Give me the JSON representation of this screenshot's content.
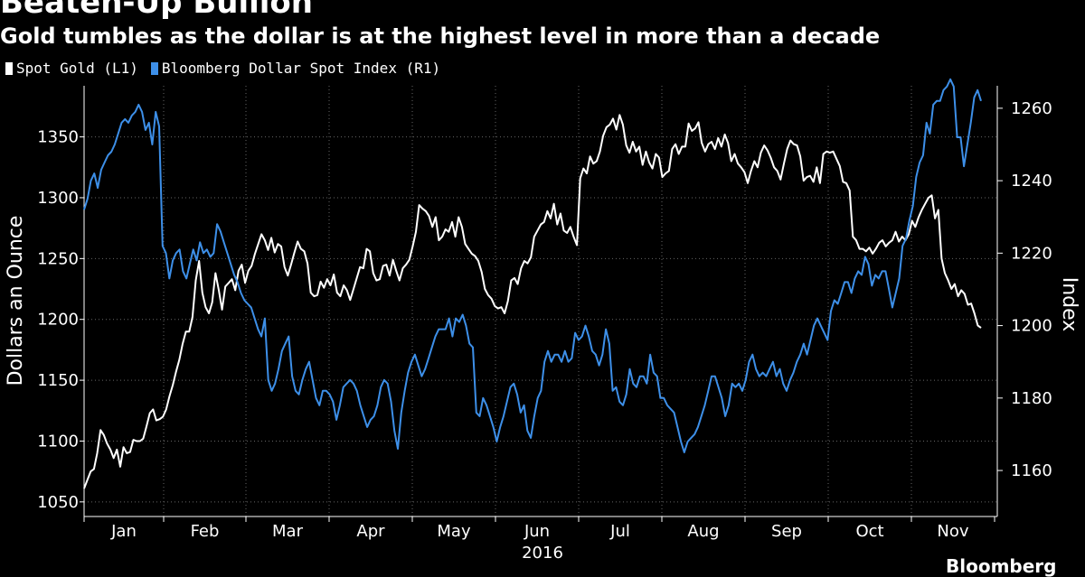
{
  "title": "Beaten-Up Bullion",
  "subtitle": "Gold tumbles as the dollar is at the highest level in more than a decade",
  "colors": {
    "background": "#000000",
    "gold": "#ffffff",
    "dollar": "#3d8fe8",
    "grid": "#666666"
  },
  "logo_text": "Bloomberg",
  "chart_data": {
    "type": "line",
    "x_axis": {
      "tick_labels": [
        "Jan",
        "Feb",
        "Mar",
        "Apr",
        "May",
        "Jun",
        "Jul",
        "Aug",
        "Sep",
        "Oct",
        "Nov"
      ],
      "year_label": "2016"
    },
    "y_left": {
      "label": "Dollars an Ounce",
      "ticks": [
        1050,
        1100,
        1150,
        1200,
        1250,
        1300,
        1350
      ],
      "range": [
        1038,
        1392
      ]
    },
    "y_right": {
      "label": "Index",
      "ticks": [
        1160,
        1180,
        1200,
        1220,
        1240,
        1260
      ],
      "range": [
        1147.3,
        1266.2
      ]
    },
    "grid": true,
    "legend": "top-left",
    "series": [
      {
        "name": "Spot Gold (L1)",
        "axis": "left",
        "values": [
          1061,
          1068,
          1075,
          1077,
          1090,
          1109,
          1105,
          1098,
          1093,
          1086,
          1093,
          1079,
          1095,
          1090,
          1091,
          1101,
          1100,
          1100,
          1102,
          1112,
          1123,
          1126,
          1117,
          1118,
          1120,
          1126,
          1137,
          1146,
          1157,
          1167,
          1180,
          1190,
          1190,
          1202,
          1232,
          1248,
          1222,
          1210,
          1205,
          1214,
          1238,
          1224,
          1208,
          1227,
          1230,
          1233,
          1224,
          1240,
          1245,
          1230,
          1240,
          1244,
          1254,
          1262,
          1270,
          1265,
          1257,
          1267,
          1255,
          1262,
          1260,
          1243,
          1236,
          1245,
          1255,
          1264,
          1258,
          1256,
          1246,
          1222,
          1219,
          1220,
          1231,
          1226,
          1233,
          1228,
          1237,
          1222,
          1219,
          1228,
          1224,
          1216,
          1225,
          1234,
          1243,
          1242,
          1258,
          1256,
          1238,
          1232,
          1233,
          1244,
          1245,
          1236,
          1249,
          1240,
          1232,
          1242,
          1245,
          1249,
          1260,
          1272,
          1294,
          1291,
          1289,
          1285,
          1276,
          1284,
          1265,
          1268,
          1274,
          1272,
          1280,
          1268,
          1284,
          1276,
          1262,
          1258,
          1254,
          1252,
          1248,
          1239,
          1225,
          1220,
          1217,
          1211,
          1209,
          1210,
          1205,
          1215,
          1232,
          1234,
          1229,
          1242,
          1248,
          1246,
          1251,
          1268,
          1273,
          1278,
          1280,
          1289,
          1283,
          1295,
          1278,
          1287,
          1273,
          1271,
          1276,
          1268,
          1261,
          1316,
          1324,
          1320,
          1334,
          1328,
          1330,
          1338,
          1351,
          1358,
          1360,
          1365,
          1356,
          1368,
          1360,
          1343,
          1337,
          1346,
          1338,
          1342,
          1327,
          1338,
          1329,
          1324,
          1336,
          1333,
          1317,
          1320,
          1322,
          1340,
          1344,
          1336,
          1342,
          1342,
          1361,
          1355,
          1357,
          1362,
          1345,
          1338,
          1344,
          1346,
          1340,
          1349,
          1342,
          1352,
          1345,
          1330,
          1336,
          1328,
          1325,
          1321,
          1312,
          1322,
          1330,
          1325,
          1337,
          1343,
          1339,
          1333,
          1325,
          1322,
          1315,
          1328,
          1340,
          1347,
          1344,
          1343,
          1334,
          1314,
          1317,
          1318,
          1313,
          1325,
          1312,
          1336,
          1338,
          1337,
          1338,
          1332,
          1326,
          1313,
          1312,
          1306,
          1268,
          1265,
          1258,
          1258,
          1256,
          1259,
          1254,
          1258,
          1263,
          1265,
          1260,
          1263,
          1265,
          1272,
          1264,
          1268,
          1265,
          1270,
          1281,
          1276,
          1284,
          1290,
          1295,
          1300,
          1302,
          1283,
          1290,
          1250,
          1238,
          1232,
          1225,
          1229,
          1219,
          1224,
          1221,
          1212,
          1213,
          1205,
          1195,
          1193
        ],
        "color": "#ffffff"
      },
      {
        "name": "Bloomberg Dollar Spot Index (R1)",
        "axis": "right",
        "values": [
          1232,
          1235,
          1240,
          1242,
          1238,
          1243,
          1245,
          1247,
          1248,
          1250,
          1253,
          1256,
          1257,
          1256,
          1258,
          1259,
          1261,
          1259,
          1254,
          1256,
          1250,
          1259,
          1255,
          1222,
          1220,
          1213,
          1218,
          1220,
          1221,
          1215,
          1213,
          1217,
          1221,
          1218,
          1223,
          1220,
          1221,
          1219,
          1220,
          1228,
          1226,
          1223,
          1220,
          1217,
          1214,
          1212,
          1209,
          1207,
          1206,
          1205,
          1202,
          1199,
          1197,
          1202,
          1185,
          1182,
          1184,
          1188,
          1193,
          1195,
          1197,
          1186,
          1182,
          1181,
          1185,
          1188,
          1190,
          1185,
          1180,
          1178,
          1182,
          1182,
          1181,
          1179,
          1174,
          1178,
          1183,
          1184,
          1185,
          1184,
          1182,
          1178,
          1175,
          1172,
          1174,
          1175,
          1178,
          1183,
          1185,
          1184,
          1179,
          1171,
          1166,
          1176,
          1182,
          1187,
          1190,
          1192,
          1189,
          1186,
          1188,
          1191,
          1194,
          1197,
          1199,
          1199,
          1199,
          1202,
          1197,
          1202,
          1201,
          1203,
          1200,
          1195,
          1194,
          1176,
          1175,
          1180,
          1178,
          1175,
          1172,
          1168,
          1172,
          1175,
          1179,
          1183,
          1184,
          1181,
          1176,
          1178,
          1171,
          1169,
          1175,
          1180,
          1182,
          1190,
          1193,
          1190,
          1192,
          1192,
          1190,
          1193,
          1190,
          1191,
          1198,
          1196,
          1197,
          1200,
          1197,
          1193,
          1192,
          1189,
          1192,
          1199,
          1195,
          1182,
          1183,
          1179,
          1178,
          1181,
          1188,
          1184,
          1183,
          1186,
          1186,
          1184,
          1192,
          1187,
          1186,
          1180,
          1180,
          1178,
          1177,
          1176,
          1172,
          1168,
          1165,
          1168,
          1169,
          1170,
          1172,
          1175,
          1178,
          1182,
          1186,
          1186,
          1183,
          1180,
          1175,
          1178,
          1184,
          1183,
          1184,
          1182,
          1185,
          1190,
          1192,
          1188,
          1186,
          1187,
          1186,
          1188,
          1190,
          1186,
          1188,
          1184,
          1182,
          1185,
          1187,
          1190,
          1192,
          1195,
          1192,
          1196,
          1200,
          1202,
          1200,
          1198,
          1196,
          1204,
          1207,
          1206,
          1209,
          1212,
          1212,
          1209,
          1213,
          1215,
          1214,
          1219,
          1217,
          1211,
          1214,
          1213,
          1215,
          1215,
          1210,
          1205,
          1209,
          1213,
          1222,
          1224,
          1229,
          1233,
          1241,
          1245,
          1247,
          1256,
          1253,
          1261,
          1262,
          1262,
          1265,
          1266,
          1268,
          1266,
          1252,
          1252,
          1244,
          1250,
          1256,
          1263,
          1265,
          1262
        ],
        "color": "#3d8fe8"
      }
    ]
  }
}
